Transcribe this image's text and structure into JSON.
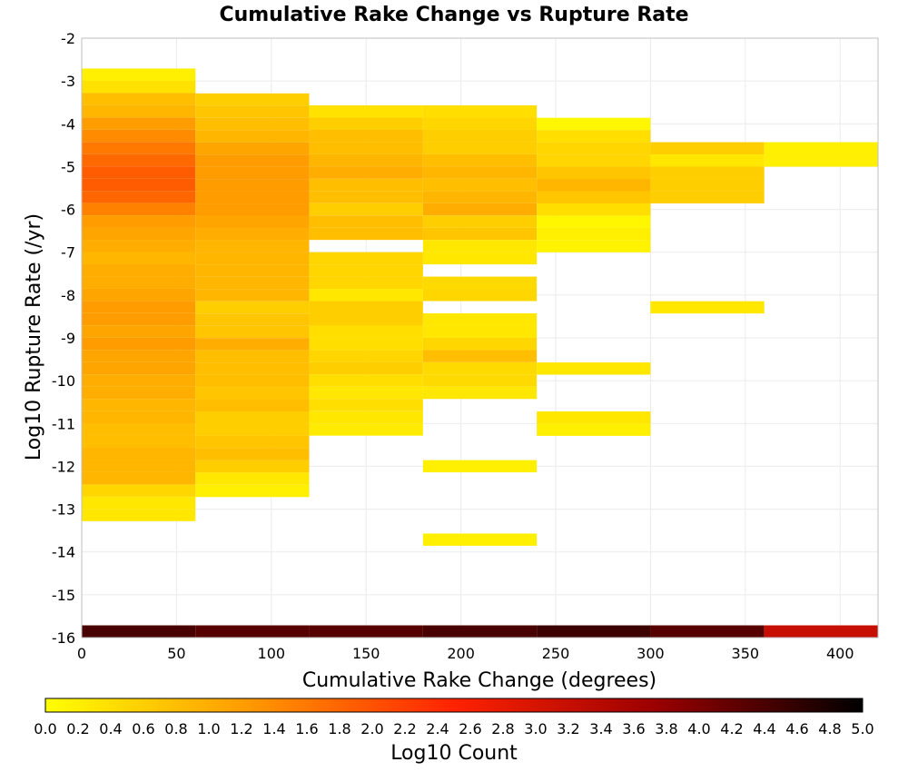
{
  "chart_data": {
    "type": "heatmap",
    "title": "Cumulative Rake Change vs Rupture Rate",
    "xlabel": "Cumulative Rake Change (degrees)",
    "ylabel": "Log10 Rupture Rate (/yr)",
    "xlim": [
      0,
      420
    ],
    "ylim": [
      -16,
      -2
    ],
    "x_ticks": [
      "0",
      "50",
      "100",
      "150",
      "200",
      "250",
      "300",
      "350",
      "400"
    ],
    "y_ticks": [
      "-2",
      "-3",
      "-4",
      "-5",
      "-6",
      "-7",
      "-8",
      "-9",
      "-10",
      "-11",
      "-12",
      "-13",
      "-14",
      "-15",
      "-16"
    ],
    "grid": true,
    "cell_width": 60,
    "cell_height": 0.2857,
    "colorbar": {
      "label": "Log10 Count",
      "range": [
        0,
        5
      ],
      "ticks": [
        "0.0",
        "0.2",
        "0.4",
        "0.6",
        "0.8",
        "1.0",
        "1.2",
        "1.4",
        "1.6",
        "1.8",
        "2.0",
        "2.2",
        "2.4",
        "2.6",
        "2.8",
        "3.0",
        "3.2",
        "3.4",
        "3.6",
        "3.8",
        "4.0",
        "4.2",
        "4.4",
        "4.6",
        "4.8",
        "5.0"
      ],
      "colors": [
        "#ffff00",
        "#ff9900",
        "#ff2200",
        "#990000",
        "#000000"
      ]
    },
    "columns": [
      {
        "x0": 0,
        "y_top": -2.71,
        "values": [
          0.2,
          0.35,
          0.8,
          0.9,
          1.2,
          1.4,
          1.6,
          1.75,
          1.9,
          1.9,
          1.8,
          1.5,
          1.2,
          1.1,
          1.0,
          0.9,
          1.0,
          1.0,
          1.1,
          1.2,
          1.2,
          1.1,
          1.2,
          1.1,
          1.1,
          1.0,
          1.0,
          0.9,
          0.9,
          0.8,
          0.8,
          0.9,
          0.9,
          0.9,
          0.5,
          0.3,
          0.3
        ],
        "bottom_row": {
          "y0": -16,
          "value": 4.4
        }
      },
      {
        "x0": 60,
        "y_top": -3.29,
        "values": [
          0.6,
          0.7,
          0.8,
          0.9,
          1.1,
          1.2,
          1.2,
          1.2,
          1.2,
          1.2,
          1.1,
          1.0,
          0.9,
          0.9,
          0.9,
          0.9,
          0.9,
          0.6,
          0.7,
          0.7,
          1.0,
          0.8,
          0.8,
          0.8,
          0.7,
          0.8,
          0.6,
          0.6,
          0.7,
          0.8,
          0.6,
          0.3,
          0.2
        ],
        "bottom_row": {
          "y0": -16,
          "value": 4.3
        }
      },
      {
        "x0": 120,
        "y_top": -3.57,
        "values": [
          0.35,
          0.6,
          0.8,
          0.8,
          0.9,
          1.0,
          0.8,
          0.8,
          0.6,
          0.8,
          0.8,
          null,
          0.5,
          0.5,
          0.5,
          0.3,
          0.6,
          0.6,
          0.4,
          0.4,
          0.5,
          0.6,
          0.4,
          0.3,
          0.4,
          0.3,
          0.25
        ],
        "bottom_row": {
          "y0": -16,
          "value": 4.3
        }
      },
      {
        "x0": 180,
        "y_top": -3.57,
        "values": [
          0.4,
          0.5,
          0.6,
          0.6,
          0.8,
          0.9,
          0.8,
          0.9,
          1.0,
          0.6,
          0.7,
          0.3,
          0.3,
          null,
          0.45,
          0.5,
          null,
          0.3,
          0.3,
          0.5,
          0.8,
          0.45,
          0.45,
          0.3,
          null,
          null,
          null,
          null,
          null,
          0.2,
          null,
          null,
          null,
          null,
          null,
          0.2
        ],
        "bottom_row": {
          "y0": -16,
          "value": 4.4
        }
      },
      {
        "x0": 240,
        "y_top": -3.86,
        "values": [
          0.1,
          0.4,
          0.5,
          0.5,
          0.7,
          0.9,
          0.7,
          0.4,
          0.1,
          0.2,
          0.15,
          null,
          null,
          null,
          null,
          null,
          null,
          null,
          null,
          null,
          0.3,
          null,
          null,
          null,
          0.3,
          0.2
        ],
        "bottom_row": {
          "y0": -16,
          "value": 4.5
        }
      },
      {
        "x0": 300,
        "y_top": -4.43,
        "values": [
          0.6,
          0.3,
          0.6,
          0.6,
          0.6,
          null,
          null,
          null,
          null,
          null,
          null,
          null,
          null,
          0.3
        ],
        "bottom_row": {
          "y0": -16,
          "value": 4.3
        }
      },
      {
        "x0": 360,
        "y_top": -4.43,
        "values": [
          0.2,
          0.2
        ],
        "bottom_row": {
          "y0": -16,
          "value": 3.2
        }
      }
    ]
  }
}
